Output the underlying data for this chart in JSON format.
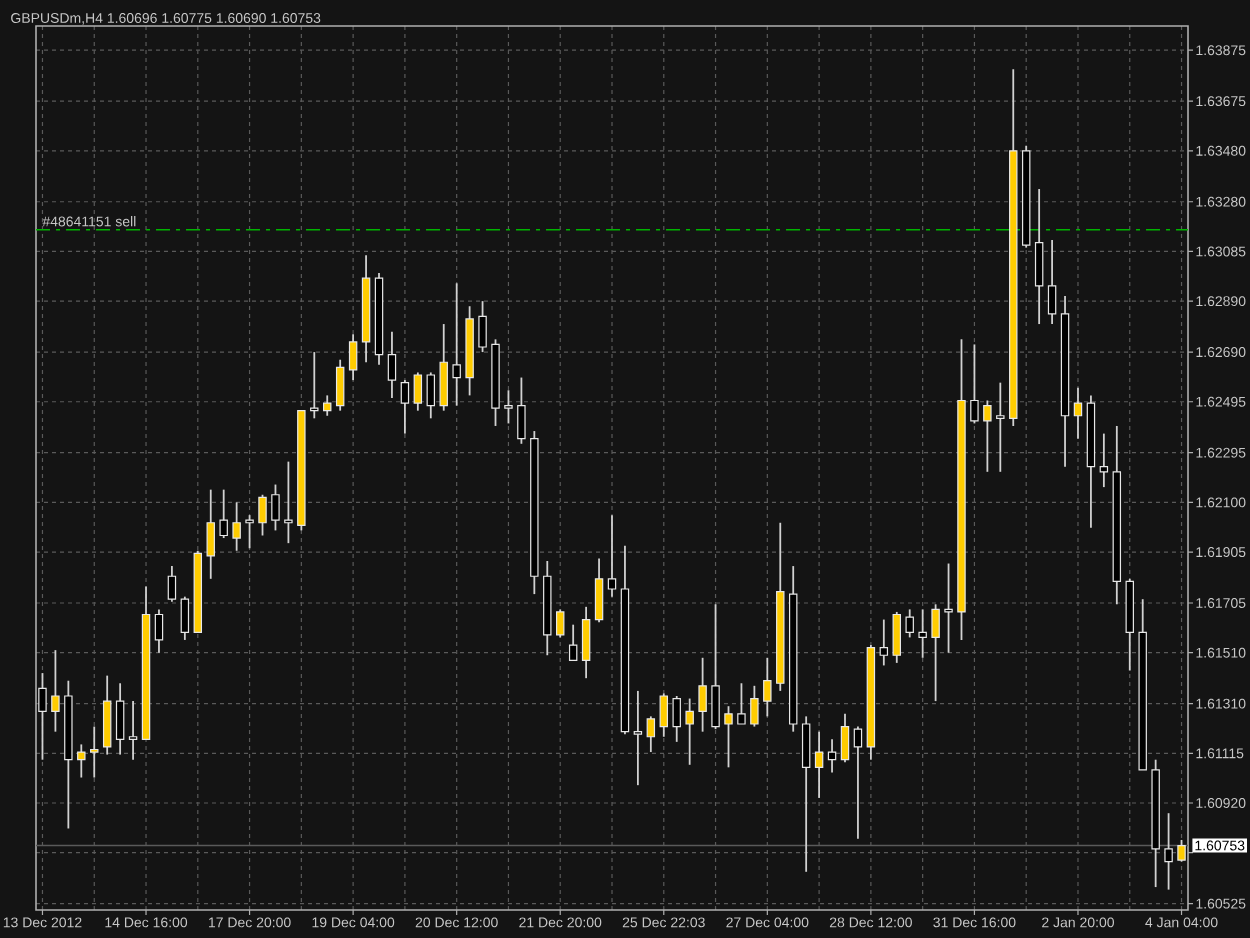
{
  "chart_data": {
    "type": "candlestick",
    "title": "GBPUSDm,H4 1.60696 1.60775 1.60690 1.60753",
    "categories": [
      "13 Dec 2012",
      null,
      null,
      null,
      null,
      null,
      null,
      null,
      "14 Dec 16:00",
      null,
      null,
      null,
      null,
      null,
      null,
      null,
      "17 Dec 20:00",
      null,
      null,
      null,
      null,
      null,
      null,
      null,
      "19 Dec 04:00",
      null,
      null,
      null,
      null,
      null,
      null,
      null,
      "20 Dec 12:00",
      null,
      null,
      null,
      null,
      null,
      null,
      null,
      "21 Dec 20:00",
      null,
      null,
      null,
      null,
      null,
      null,
      null,
      "25 Dec 22:03",
      null,
      null,
      null,
      null,
      null,
      null,
      null,
      "27 Dec 04:00",
      null,
      null,
      null,
      null,
      null,
      null,
      null,
      "28 Dec 12:00",
      null,
      null,
      null,
      null,
      null,
      null,
      null,
      "31 Dec 16:00",
      null,
      null,
      null,
      null,
      null,
      null,
      null,
      "2 Jan 20:00",
      null,
      null,
      null,
      null,
      null,
      null,
      null,
      "4 Jan 04:00"
    ],
    "ohlc": [
      [
        1.6137,
        1.6143,
        1.6109,
        1.6128
      ],
      [
        1.6128,
        1.6152,
        1.612,
        1.6134
      ],
      [
        1.6134,
        1.614,
        1.6082,
        1.6109
      ],
      [
        1.6109,
        1.6115,
        1.6102,
        1.6112
      ],
      [
        1.6112,
        1.6122,
        1.6102,
        1.6113
      ],
      [
        1.6114,
        1.6142,
        1.6111,
        1.6132
      ],
      [
        1.6132,
        1.6139,
        1.6111,
        1.6117
      ],
      [
        1.6118,
        1.6132,
        1.6109,
        1.6117
      ],
      [
        1.6117,
        1.6177,
        1.6117,
        1.6166
      ],
      [
        1.6166,
        1.6168,
        1.6151,
        1.6156
      ],
      [
        1.6181,
        1.6185,
        1.6171,
        1.6172
      ],
      [
        1.6172,
        1.6173,
        1.6156,
        1.6159
      ],
      [
        1.6159,
        1.6191,
        1.6159,
        1.619
      ],
      [
        1.6189,
        1.6215,
        1.618,
        1.6202
      ],
      [
        1.6203,
        1.6215,
        1.6196,
        1.6197
      ],
      [
        1.6196,
        1.621,
        1.6191,
        1.6202
      ],
      [
        1.6203,
        1.6205,
        1.6192,
        1.6202
      ],
      [
        1.6202,
        1.6213,
        1.6197,
        1.6212
      ],
      [
        1.6213,
        1.6217,
        1.6199,
        1.6203
      ],
      [
        1.6203,
        1.6226,
        1.6194,
        1.6202
      ],
      [
        1.6201,
        1.6246,
        1.6199,
        1.6246
      ],
      [
        1.6247,
        1.6269,
        1.6243,
        1.6246
      ],
      [
        1.6246,
        1.6252,
        1.6244,
        1.6249
      ],
      [
        1.6248,
        1.6266,
        1.6246,
        1.6263
      ],
      [
        1.6262,
        1.6276,
        1.6258,
        1.6273
      ],
      [
        1.6273,
        1.6307,
        1.6265,
        1.6298
      ],
      [
        1.6298,
        1.63,
        1.6264,
        1.6268
      ],
      [
        1.6268,
        1.6277,
        1.6251,
        1.6258
      ],
      [
        1.6257,
        1.6258,
        1.6237,
        1.6249
      ],
      [
        1.6249,
        1.6261,
        1.6246,
        1.626
      ],
      [
        1.626,
        1.6261,
        1.6243,
        1.6248
      ],
      [
        1.6248,
        1.628,
        1.6246,
        1.6265
      ],
      [
        1.6264,
        1.6296,
        1.6248,
        1.6259
      ],
      [
        1.6259,
        1.6287,
        1.6252,
        1.6282
      ],
      [
        1.6283,
        1.6289,
        1.6269,
        1.6271
      ],
      [
        1.6272,
        1.6274,
        1.624,
        1.6247
      ],
      [
        1.6248,
        1.6254,
        1.6241,
        1.6247
      ],
      [
        1.6248,
        1.6259,
        1.6233,
        1.6235
      ],
      [
        1.6235,
        1.6238,
        1.6174,
        1.6181
      ],
      [
        1.6181,
        1.6187,
        1.615,
        1.6158
      ],
      [
        1.6158,
        1.6168,
        1.6157,
        1.6167
      ],
      [
        1.6154,
        1.6162,
        1.6148,
        1.6148
      ],
      [
        1.6148,
        1.6169,
        1.6141,
        1.6164
      ],
      [
        1.6164,
        1.6188,
        1.6163,
        1.618
      ],
      [
        1.618,
        1.6205,
        1.6173,
        1.6176
      ],
      [
        1.6176,
        1.6193,
        1.6119,
        1.612
      ],
      [
        1.612,
        1.6136,
        1.6099,
        1.6119
      ],
      [
        1.6118,
        1.6126,
        1.6112,
        1.6125
      ],
      [
        1.6122,
        1.6135,
        1.6118,
        1.6134
      ],
      [
        1.6133,
        1.6134,
        1.6116,
        1.6122
      ],
      [
        1.6123,
        1.6133,
        1.6107,
        1.6128
      ],
      [
        1.6128,
        1.6149,
        1.612,
        1.6138
      ],
      [
        1.6138,
        1.617,
        1.6121,
        1.6122
      ],
      [
        1.6123,
        1.613,
        1.6106,
        1.6127
      ],
      [
        1.6127,
        1.6139,
        1.6123,
        1.6123
      ],
      [
        1.6123,
        1.6138,
        1.6122,
        1.6133
      ],
      [
        1.6132,
        1.6149,
        1.6126,
        1.614
      ],
      [
        1.6139,
        1.6202,
        1.6136,
        1.6175
      ],
      [
        1.6174,
        1.6185,
        1.612,
        1.6123
      ],
      [
        1.6123,
        1.6126,
        1.6065,
        1.6106
      ],
      [
        1.6106,
        1.612,
        1.6094,
        1.6112
      ],
      [
        1.6112,
        1.6117,
        1.6104,
        1.6109
      ],
      [
        1.6109,
        1.6127,
        1.6108,
        1.6122
      ],
      [
        1.6121,
        1.6122,
        1.6078,
        1.6114
      ],
      [
        1.6114,
        1.6154,
        1.6109,
        1.6153
      ],
      [
        1.6153,
        1.6164,
        1.6146,
        1.615
      ],
      [
        1.615,
        1.6167,
        1.6147,
        1.6166
      ],
      [
        1.6165,
        1.6168,
        1.6157,
        1.6159
      ],
      [
        1.6159,
        1.6168,
        1.6149,
        1.6157
      ],
      [
        1.6157,
        1.617,
        1.6132,
        1.6168
      ],
      [
        1.6168,
        1.6186,
        1.6151,
        1.6167
      ],
      [
        1.6167,
        1.6274,
        1.6156,
        1.625
      ],
      [
        1.625,
        1.6272,
        1.6241,
        1.6242
      ],
      [
        1.6242,
        1.625,
        1.6222,
        1.6248
      ],
      [
        1.6244,
        1.6257,
        1.6222,
        1.6243
      ],
      [
        1.6243,
        1.638,
        1.624,
        1.6348
      ],
      [
        1.6348,
        1.635,
        1.631,
        1.6311
      ],
      [
        1.6312,
        1.6333,
        1.628,
        1.6295
      ],
      [
        1.6295,
        1.6313,
        1.628,
        1.6284
      ],
      [
        1.6284,
        1.6291,
        1.6224,
        1.6244
      ],
      [
        1.6244,
        1.6255,
        1.6235,
        1.6249
      ],
      [
        1.6249,
        1.6252,
        1.62,
        1.6224
      ],
      [
        1.6224,
        1.6237,
        1.6216,
        1.6222
      ],
      [
        1.6222,
        1.624,
        1.617,
        1.6179
      ],
      [
        1.6179,
        1.618,
        1.6144,
        1.6159
      ],
      [
        1.6159,
        1.6172,
        1.6105,
        1.6105
      ],
      [
        1.6105,
        1.6109,
        1.6059,
        1.6074
      ],
      [
        1.6074,
        1.6088,
        1.6058,
        1.6069
      ],
      [
        1.60696,
        1.60775,
        1.6069,
        1.60753
      ]
    ],
    "colors": [
      "#000000",
      "#ffcc00",
      "#000000",
      "#ffcc00",
      "#ffcc00",
      "#ffcc00",
      "#000000",
      "#000000",
      "#ffcc00",
      "#000000",
      "#000000",
      "#000000",
      "#ffcc00",
      "#ffcc00",
      "#000000",
      "#ffcc00",
      "#000000",
      "#ffcc00",
      "#000000",
      "#000000",
      "#ffcc00",
      "#000000",
      "#ffcc00",
      "#ffcc00",
      "#ffcc00",
      "#ffcc00",
      "#000000",
      "#000000",
      "#000000",
      "#ffcc00",
      "#000000",
      "#ffcc00",
      "#000000",
      "#ffcc00",
      "#000000",
      "#000000",
      "#000000",
      "#000000",
      "#000000",
      "#000000",
      "#ffcc00",
      "#000000",
      "#ffcc00",
      "#ffcc00",
      "#000000",
      "#000000",
      "#000000",
      "#ffcc00",
      "#ffcc00",
      "#000000",
      "#ffcc00",
      "#ffcc00",
      "#000000",
      "#ffcc00",
      "#000000",
      "#ffcc00",
      "#ffcc00",
      "#ffcc00",
      "#000000",
      "#000000",
      "#ffcc00",
      "#000000",
      "#ffcc00",
      "#000000",
      "#ffcc00",
      "#000000",
      "#ffcc00",
      "#000000",
      "#000000",
      "#ffcc00",
      "#000000",
      "#ffcc00",
      "#000000",
      "#ffcc00",
      "#000000",
      "#ffcc00",
      "#000000",
      "#000000",
      "#000000",
      "#000000",
      "#ffcc00",
      "#000000",
      "#000000",
      "#000000",
      "#000000",
      "#000000",
      "#000000",
      "#000000",
      "#ffcc00"
    ],
    "ylim": [
      1.605,
      1.6397
    ],
    "yticks": [
      1.63875,
      1.63675,
      {
        "value": 1.6348,
        "label": "1.63480"
      },
      {
        "value": 1.6328,
        "label": "1.63280"
      },
      1.63085,
      {
        "value": 1.6289,
        "label": "1.62890"
      },
      {
        "value": 1.6269,
        "label": "1.62690"
      },
      1.62495,
      1.62295,
      {
        "value": 1.621,
        "label": "1.62100"
      },
      1.61905,
      1.61705,
      {
        "value": 1.6151,
        "label": "1.61510"
      },
      {
        "value": 1.6131,
        "label": "1.61310"
      },
      1.61115,
      {
        "value": 1.6092,
        "label": "1.60920"
      },
      {
        "value": 1.60725,
        "label": null
      },
      1.60525
    ],
    "grid": true,
    "ref_lines": [
      {
        "axis": "y",
        "value": 1.6317,
        "label": "#48641151 sell",
        "color": "#00b400",
        "line_style": "dashdot"
      },
      {
        "axis": "y",
        "value": 1.60753,
        "label": "1.60753",
        "color": "#5a5a5a",
        "line_style": "solid"
      }
    ]
  }
}
